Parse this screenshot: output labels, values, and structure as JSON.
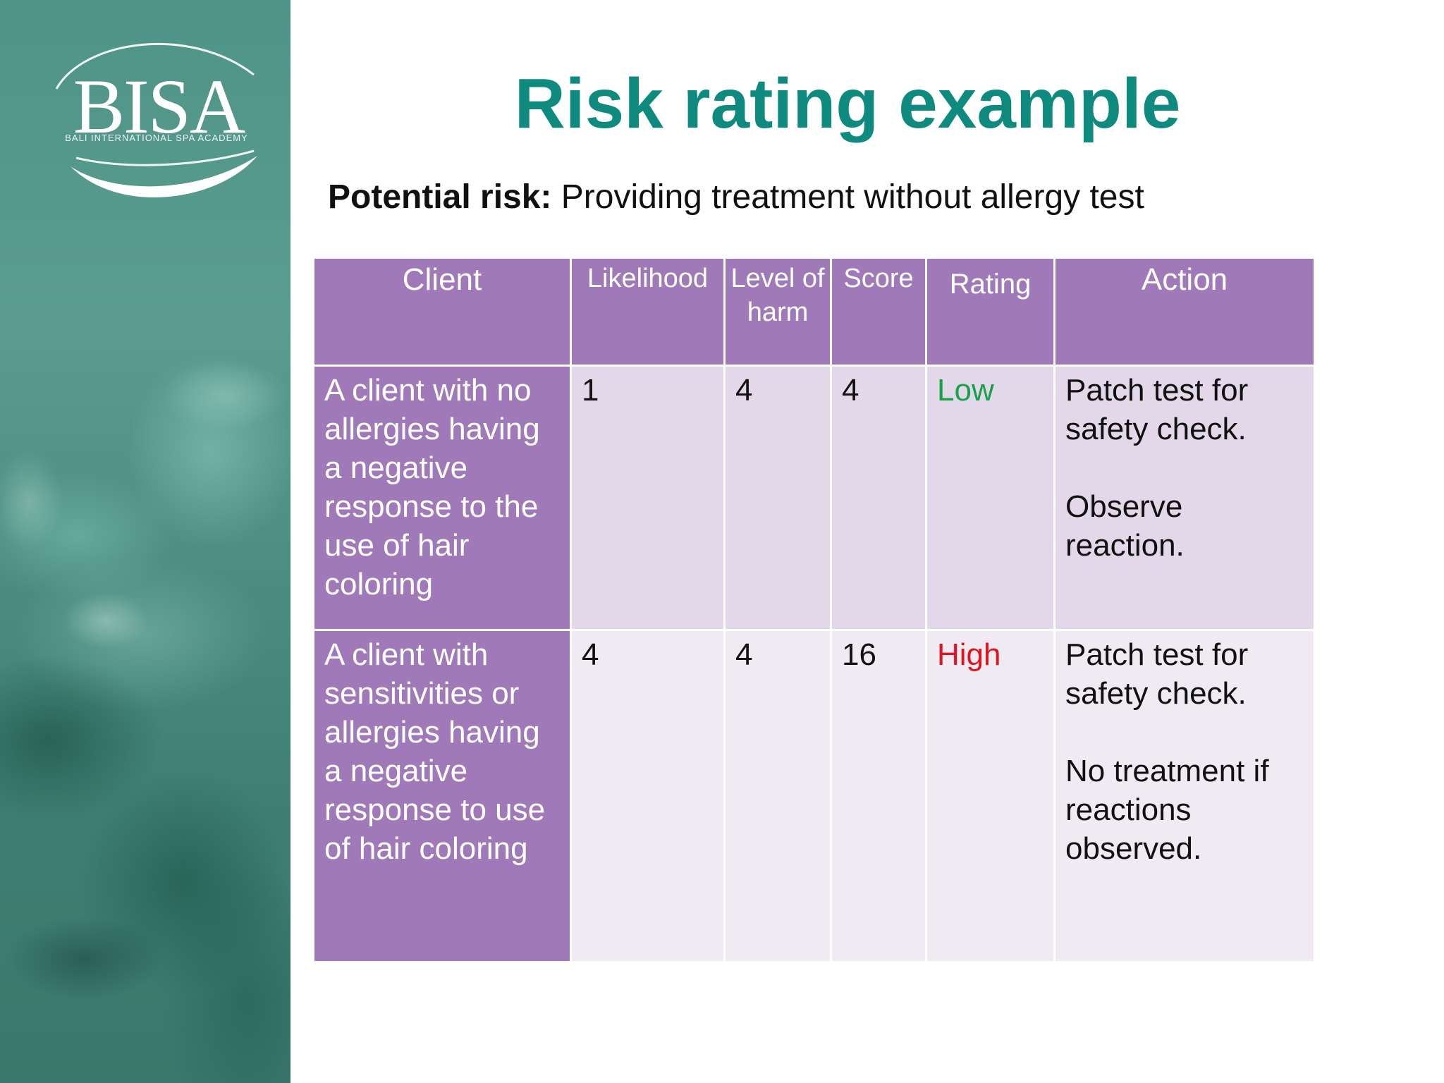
{
  "logo": {
    "text": "BISA",
    "subtext": "BALI INTERNATIONAL SPA ACADEMY"
  },
  "title": "Risk rating example",
  "subtitle": {
    "label": "Potential risk:",
    "text": " Providing treatment without allergy test"
  },
  "table": {
    "headers": {
      "client": "Client",
      "likelihood": "Likelihood",
      "level_of_harm": "Level of harm",
      "score": "Score",
      "rating": "Rating",
      "action": "Action"
    },
    "rows": [
      {
        "client": "A client with no allergies having a negative response to the use of hair coloring",
        "likelihood": "1",
        "level_of_harm": "4",
        "score": "4",
        "rating": "Low",
        "action_1": "Patch test for safety check.",
        "action_2": "Observe reaction."
      },
      {
        "client": "A client with sensitivities or allergies having a negative response to use of hair coloring",
        "likelihood": "4",
        "level_of_harm": "4",
        "score": "16",
        "rating": "High",
        "action_1": "Patch test for safety check.",
        "action_2": "No treatment if reactions observed."
      }
    ]
  },
  "colors": {
    "title": "#0e8a7e",
    "header_bg": "#a07ab8",
    "rating_low": "#17a24a",
    "rating_high": "#e0141e",
    "side_panel": "#4f9488"
  }
}
